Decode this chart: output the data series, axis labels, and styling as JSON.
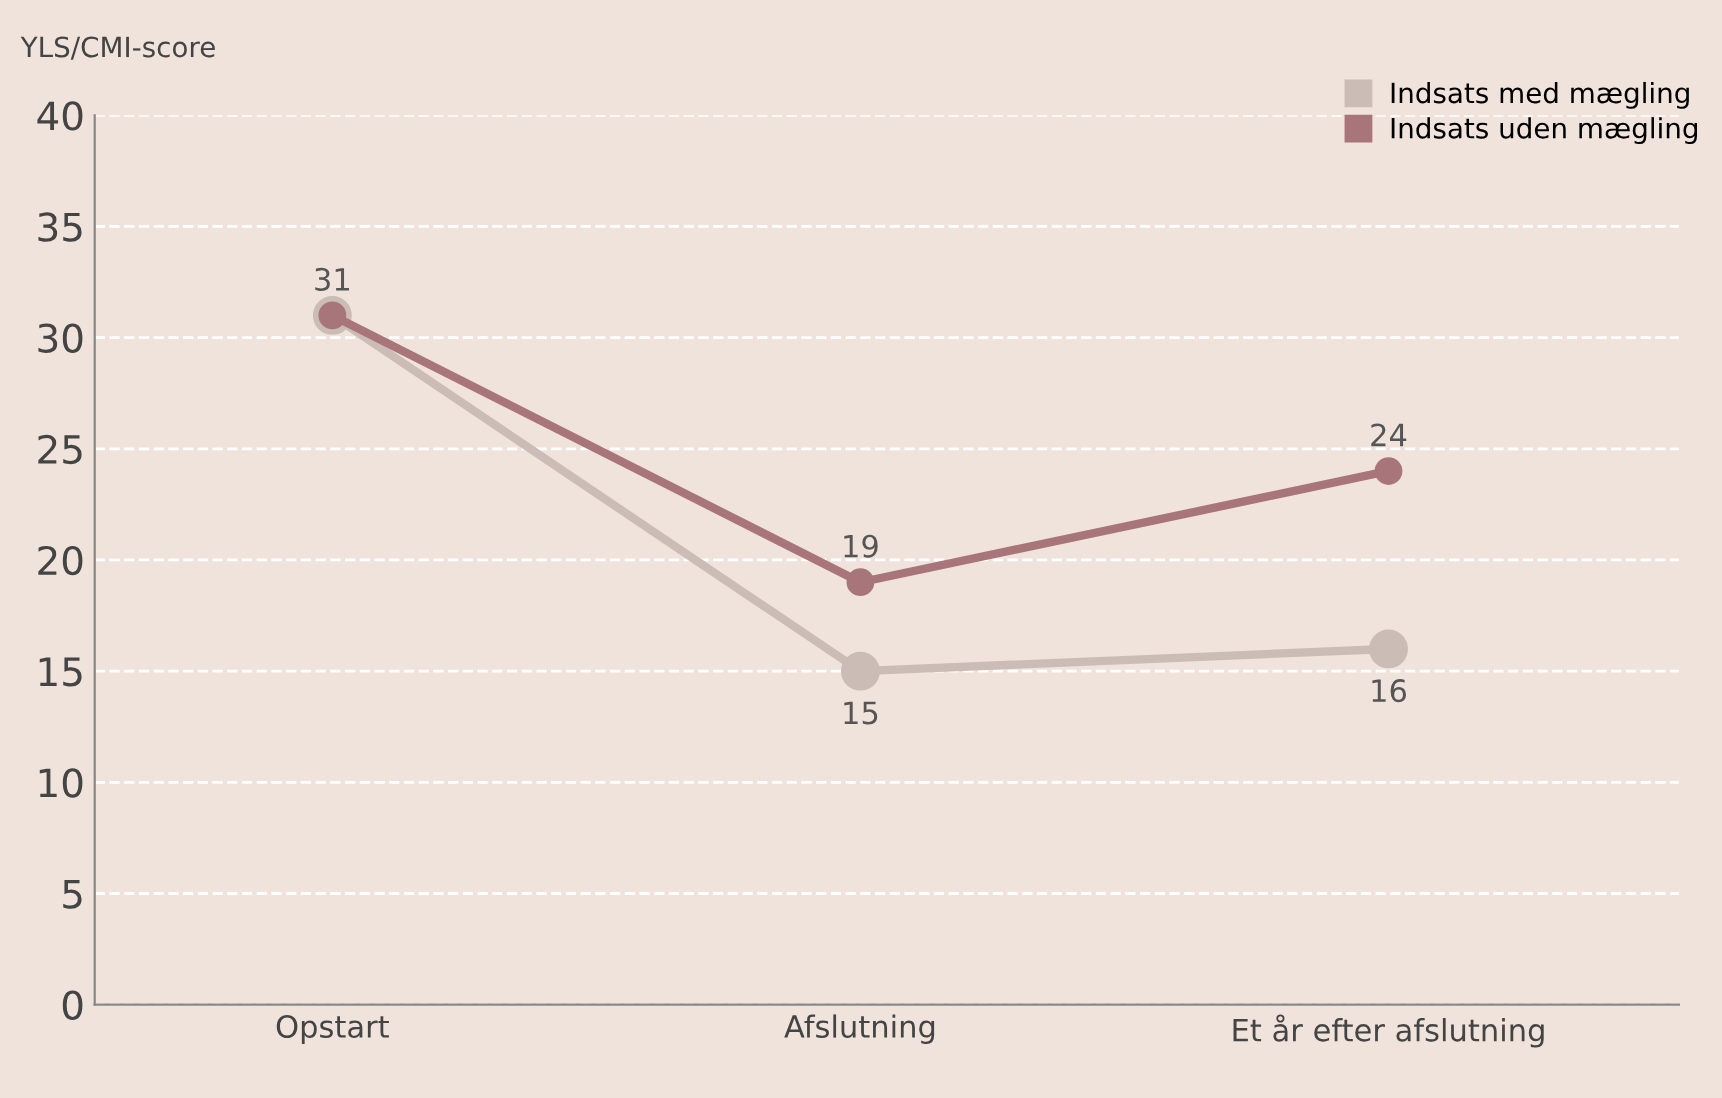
{
  "chart_data": {
    "type": "line",
    "ylabel": "YLS/CMI-score",
    "categories": [
      "Opstart",
      "Afslutning",
      "Et år efter afslutning"
    ],
    "series": [
      {
        "name": "Indsats med mægling",
        "color": "#cbbcb6",
        "values": [
          31,
          15,
          16
        ],
        "value_labels": [
          null,
          "15",
          "16"
        ]
      },
      {
        "name": "Indsats uden mægling",
        "color": "#a8767a",
        "values": [
          31,
          19,
          24
        ],
        "value_labels": [
          "31",
          "19",
          "24"
        ]
      }
    ],
    "ylim": [
      0,
      40
    ],
    "yticks": [
      0,
      5,
      10,
      15,
      20,
      25,
      30,
      35,
      40
    ],
    "grid": "y",
    "legend": "top right",
    "marker": "circle",
    "line_style": "solid"
  }
}
